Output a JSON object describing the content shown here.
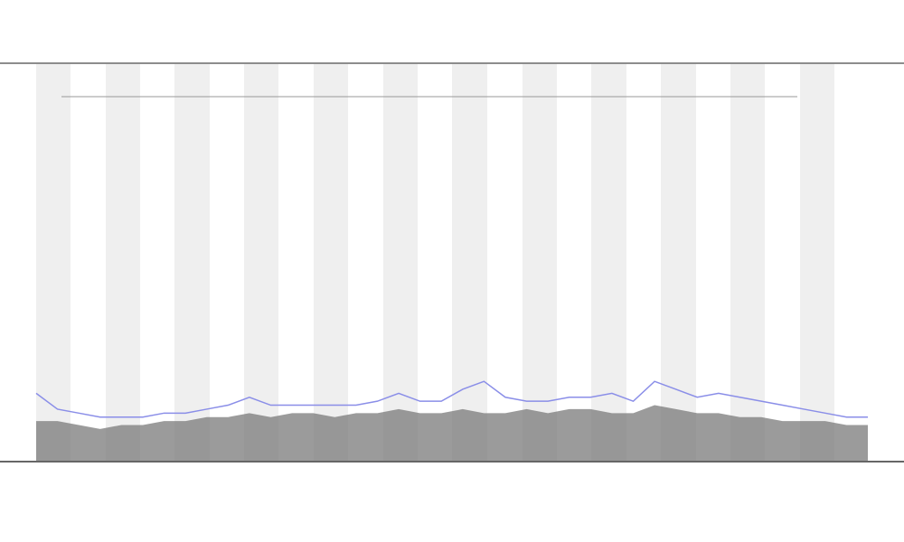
{
  "chart_data": {
    "type": "area",
    "ylim": [
      0,
      100
    ],
    "series": [
      {
        "color": "#7a7a7a",
        "values": [
          10,
          10,
          9,
          8,
          9,
          9,
          10,
          10,
          11,
          11,
          12,
          11,
          12,
          12,
          11,
          12,
          12,
          13,
          12,
          12,
          13,
          12,
          12,
          13,
          12,
          13,
          13,
          12,
          12,
          14,
          13,
          12,
          12,
          11,
          11,
          10,
          10,
          10,
          9,
          9
        ]
      },
      {
        "color": "#8a8ee8",
        "values": [
          17,
          13,
          12,
          11,
          11,
          11,
          12,
          12,
          13,
          14,
          16,
          14,
          14,
          14,
          14,
          14,
          15,
          17,
          15,
          15,
          18,
          20,
          16,
          15,
          15,
          16,
          16,
          17,
          15,
          20,
          18,
          16,
          17,
          16,
          15,
          14,
          13,
          12,
          11,
          11
        ]
      }
    ]
  }
}
